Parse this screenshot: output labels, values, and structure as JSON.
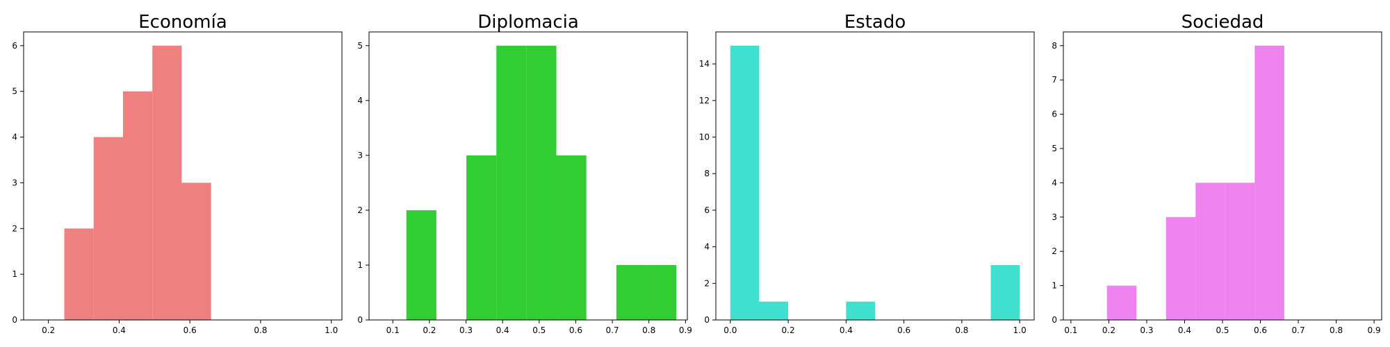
{
  "chart_data": [
    {
      "type": "bar",
      "title": "Economía",
      "xlabel": "",
      "ylabel": "",
      "color": "#f08080",
      "xlim": [
        0.13,
        1.03
      ],
      "ylim": [
        0,
        6.3
      ],
      "xticks": [
        0.2,
        0.4,
        0.6,
        0.8,
        1.0
      ],
      "xtick_labels": [
        "0.2",
        "0.4",
        "0.6",
        "0.8",
        "1.0"
      ],
      "yticks": [
        0,
        1,
        2,
        3,
        4,
        5,
        6
      ],
      "ytick_labels": [
        "0",
        "1",
        "2",
        "3",
        "4",
        "5",
        "6"
      ],
      "bins": [
        {
          "x0": 0.245,
          "x1": 0.328,
          "count": 2
        },
        {
          "x0": 0.328,
          "x1": 0.411,
          "count": 4
        },
        {
          "x0": 0.411,
          "x1": 0.494,
          "count": 5
        },
        {
          "x0": 0.494,
          "x1": 0.577,
          "count": 6
        },
        {
          "x0": 0.577,
          "x1": 0.66,
          "count": 3
        }
      ]
    },
    {
      "type": "bar",
      "title": "Diplomacia",
      "xlabel": "",
      "ylabel": "",
      "color": "#32cd32",
      "xlim": [
        0.035,
        0.905
      ],
      "ylim": [
        0,
        5.25
      ],
      "xticks": [
        0.1,
        0.2,
        0.3,
        0.4,
        0.5,
        0.6,
        0.7,
        0.8,
        0.9
      ],
      "xtick_labels": [
        "0.1",
        "0.2",
        "0.3",
        "0.4",
        "0.5",
        "0.6",
        "0.7",
        "0.8",
        "0.9"
      ],
      "yticks": [
        0,
        1,
        2,
        3,
        4,
        5
      ],
      "ytick_labels": [
        "0",
        "1",
        "2",
        "3",
        "4",
        "5"
      ],
      "bins": [
        {
          "x0": 0.137,
          "x1": 0.219,
          "count": 2
        },
        {
          "x0": 0.301,
          "x1": 0.383,
          "count": 3
        },
        {
          "x0": 0.383,
          "x1": 0.465,
          "count": 5
        },
        {
          "x0": 0.465,
          "x1": 0.547,
          "count": 5
        },
        {
          "x0": 0.547,
          "x1": 0.629,
          "count": 3
        },
        {
          "x0": 0.711,
          "x1": 0.793,
          "count": 1
        },
        {
          "x0": 0.793,
          "x1": 0.875,
          "count": 1
        }
      ]
    },
    {
      "type": "bar",
      "title": "Estado",
      "xlabel": "",
      "ylabel": "",
      "color": "#40e0d0",
      "xlim": [
        -0.05,
        1.05
      ],
      "ylim": [
        0,
        15.75
      ],
      "xticks": [
        0.0,
        0.2,
        0.4,
        0.6,
        0.8,
        1.0
      ],
      "xtick_labels": [
        "0.0",
        "0.2",
        "0.4",
        "0.6",
        "0.8",
        "1.0"
      ],
      "yticks": [
        0,
        2,
        4,
        6,
        8,
        10,
        12,
        14
      ],
      "ytick_labels": [
        "0",
        "2",
        "4",
        "6",
        "8",
        "10",
        "12",
        "14"
      ],
      "bins": [
        {
          "x0": 0.0,
          "x1": 0.1,
          "count": 15
        },
        {
          "x0": 0.1,
          "x1": 0.2,
          "count": 1
        },
        {
          "x0": 0.4,
          "x1": 0.5,
          "count": 1
        },
        {
          "x0": 0.9,
          "x1": 1.0,
          "count": 3
        }
      ]
    },
    {
      "type": "bar",
      "title": "Sociedad",
      "xlabel": "",
      "ylabel": "",
      "color": "#ee82ee",
      "xlim": [
        0.08,
        0.92
      ],
      "ylim": [
        0,
        8.4
      ],
      "xticks": [
        0.1,
        0.2,
        0.3,
        0.4,
        0.5,
        0.6,
        0.7,
        0.8,
        0.9
      ],
      "xtick_labels": [
        "0.1",
        "0.2",
        "0.3",
        "0.4",
        "0.5",
        "0.6",
        "0.7",
        "0.8",
        "0.9"
      ],
      "yticks": [
        0,
        1,
        2,
        3,
        4,
        5,
        6,
        7,
        8
      ],
      "ytick_labels": [
        "0",
        "1",
        "2",
        "3",
        "4",
        "5",
        "6",
        "7",
        "8"
      ],
      "bins": [
        {
          "x0": 0.195,
          "x1": 0.273,
          "count": 1
        },
        {
          "x0": 0.351,
          "x1": 0.429,
          "count": 3
        },
        {
          "x0": 0.429,
          "x1": 0.507,
          "count": 4
        },
        {
          "x0": 0.507,
          "x1": 0.585,
          "count": 4
        },
        {
          "x0": 0.585,
          "x1": 0.663,
          "count": 8
        }
      ]
    }
  ]
}
